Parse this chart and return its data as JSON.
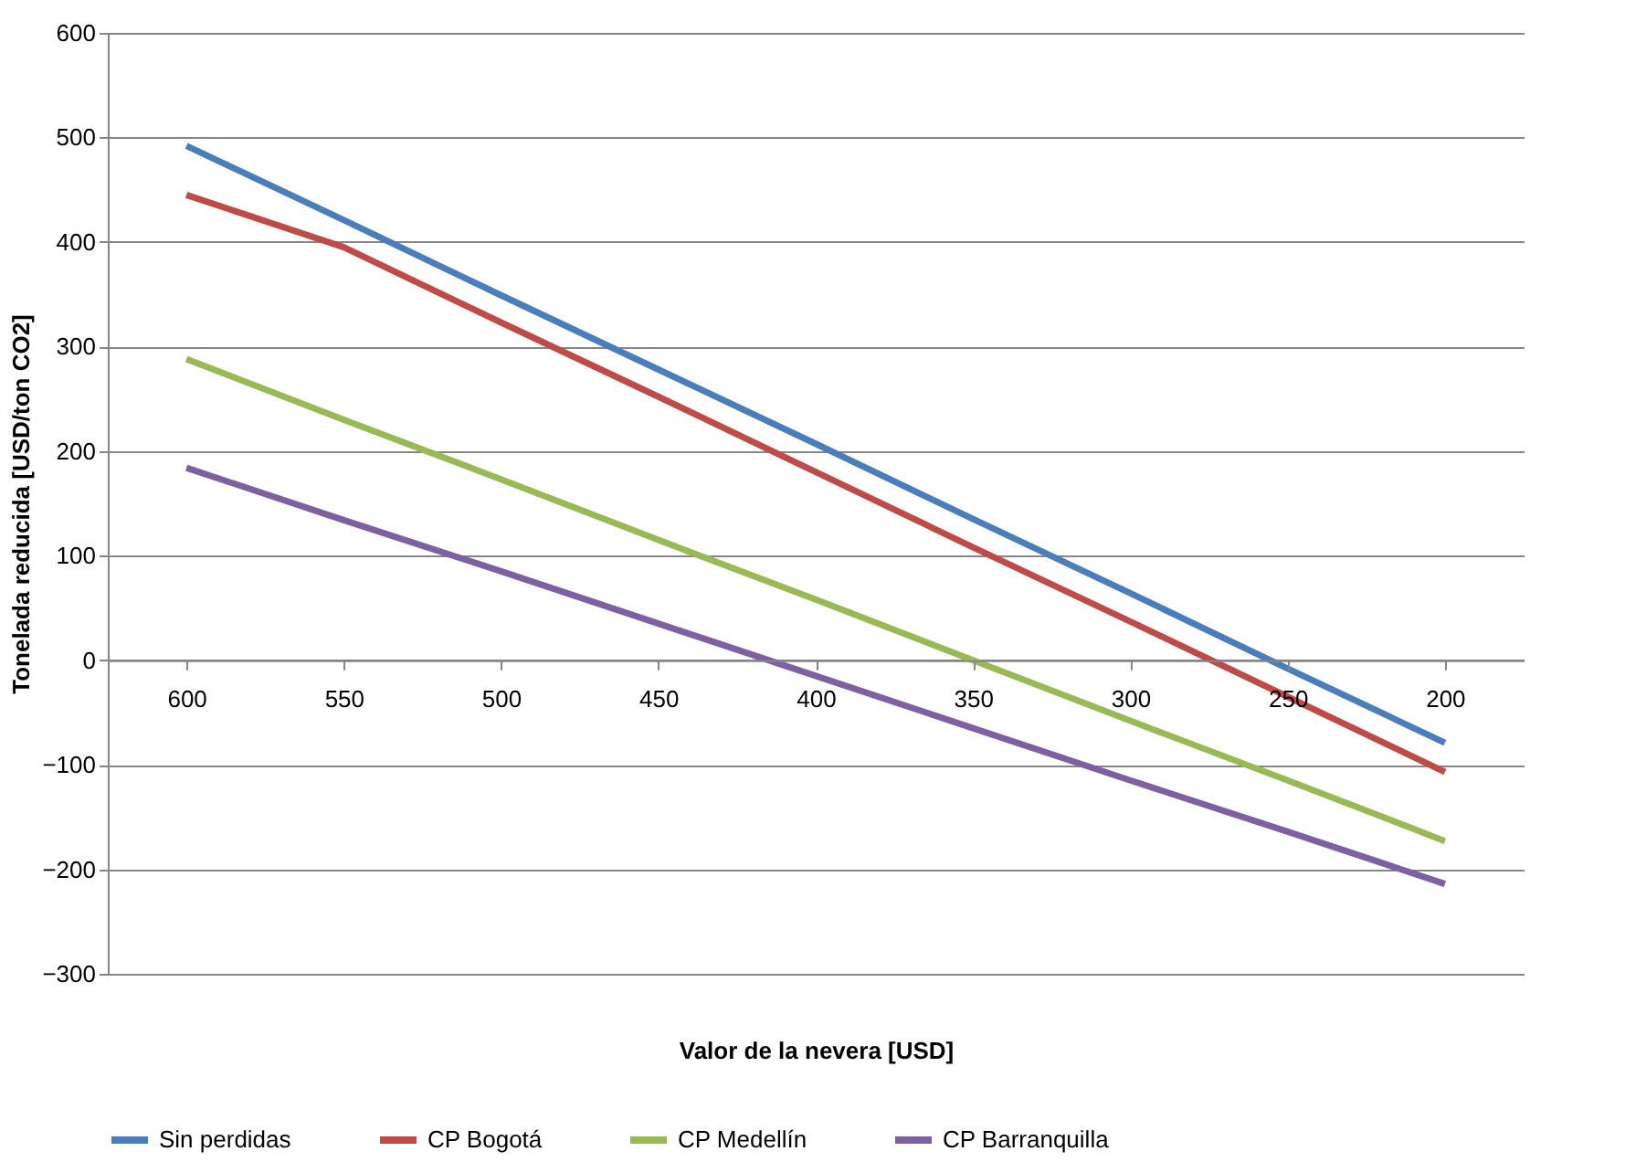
{
  "chart_data": {
    "type": "line",
    "xlabel": "Valor de la nevera [USD]",
    "ylabel": "Tonelada reducida [USD/ton CO2]",
    "categories": [
      "600",
      "550",
      "500",
      "450",
      "400",
      "350",
      "300",
      "250",
      "200"
    ],
    "series": [
      {
        "name": "Sin perdidas",
        "color": "#4a7ebb",
        "values": [
          492,
          421,
          349,
          278,
          207,
          135,
          64,
          -8,
          -79
        ]
      },
      {
        "name": "CP Bogotá",
        "color": "#be4b48",
        "values": [
          445,
          395,
          323,
          252,
          180,
          108,
          37,
          -35,
          -107
        ]
      },
      {
        "name": "CP Medellín",
        "color": "#98b954",
        "values": [
          288,
          230,
          173,
          115,
          58,
          0,
          -58,
          -115,
          -173
        ]
      },
      {
        "name": "CP Barranquilla",
        "color": "#7d60a0",
        "values": [
          184,
          134,
          85,
          35,
          -15,
          -65,
          -115,
          -164,
          -214
        ]
      }
    ],
    "ylim": [
      -300,
      600
    ],
    "yticks": [
      -300,
      -200,
      -100,
      0,
      100,
      200,
      300,
      400,
      500,
      600
    ],
    "grid": "y",
    "legend": "bottom",
    "marker": "none",
    "line_style": "solid"
  }
}
